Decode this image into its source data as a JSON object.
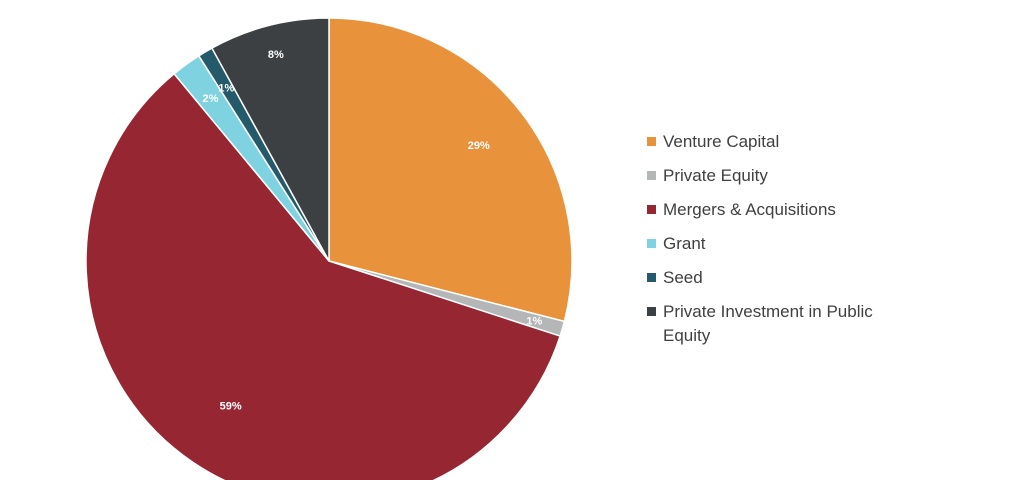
{
  "chart_data": {
    "type": "pie",
    "title": "",
    "slices": [
      {
        "name": "Venture Capital",
        "value": 29,
        "label": "29%",
        "color": "#e8923c"
      },
      {
        "name": "Private Equity",
        "value": 1,
        "label": "1%",
        "color": "#b4b6b8"
      },
      {
        "name": "Mergers & Acquisitions",
        "value": 59,
        "label": "59%",
        "color": "#972633"
      },
      {
        "name": "Grant",
        "value": 2,
        "label": "2%",
        "color": "#7fd3e0"
      },
      {
        "name": "Seed",
        "value": 1,
        "label": "1%",
        "color": "#245a6a"
      },
      {
        "name": "Private Investment in Public Equity",
        "value": 8,
        "label": "8%",
        "color": "#3d4042"
      }
    ],
    "legend_position": "right"
  }
}
